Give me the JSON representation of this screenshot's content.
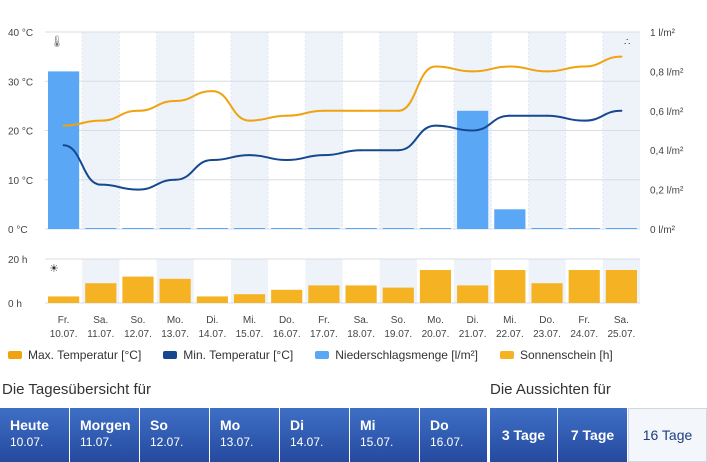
{
  "chart_data": [
    {
      "type": "line",
      "left_axis": {
        "unit": "°C",
        "ticks": [
          "40 °C",
          "30 °C",
          "20 °C",
          "10 °C",
          "0 °C"
        ],
        "ylim": [
          0,
          40
        ]
      },
      "right_axis": {
        "unit": "l/m²",
        "ticks": [
          "1 l/m²",
          "0,8 l/m²",
          "0,6 l/m²",
          "0,4 l/m²",
          "0,2 l/m²",
          "0 l/m²"
        ],
        "ylim": [
          0,
          1
        ]
      },
      "categories": [
        "Fr. 10.07.",
        "Sa. 11.07.",
        "So. 12.07.",
        "Mo. 13.07.",
        "Di. 14.07.",
        "Mi. 15.07.",
        "Do. 16.07.",
        "Fr. 17.07.",
        "Sa. 18.07.",
        "So. 19.07.",
        "Mo. 20.07.",
        "Di. 21.07.",
        "Mi. 22.07.",
        "Do. 23.07.",
        "Fr. 24.07.",
        "Sa. 25.07."
      ],
      "day_labels": [
        [
          "Fr.",
          "10.07."
        ],
        [
          "Sa.",
          "11.07."
        ],
        [
          "So.",
          "12.07."
        ],
        [
          "Mo.",
          "13.07."
        ],
        [
          "Di.",
          "14.07."
        ],
        [
          "Mi.",
          "15.07."
        ],
        [
          "Do.",
          "16.07."
        ],
        [
          "Fr.",
          "17.07."
        ],
        [
          "Sa.",
          "18.07."
        ],
        [
          "So.",
          "19.07."
        ],
        [
          "Mo.",
          "20.07."
        ],
        [
          "Di.",
          "21.07."
        ],
        [
          "Mi.",
          "22.07."
        ],
        [
          "Do.",
          "23.07."
        ],
        [
          "Fr.",
          "24.07."
        ],
        [
          "Sa.",
          "25.07."
        ]
      ],
      "series": [
        {
          "name": "Max. Temperatur [°C]",
          "kind": "line",
          "axis": "left",
          "color": "#f0a20f",
          "values": [
            21,
            22,
            24,
            26,
            28,
            22,
            23,
            24,
            24,
            24,
            33,
            32,
            33,
            32,
            33,
            35
          ]
        },
        {
          "name": "Min. Temperatur [°C]",
          "kind": "line",
          "axis": "left",
          "color": "#16488f",
          "values": [
            17,
            9,
            8,
            10,
            14,
            15,
            14,
            15,
            16,
            16,
            21,
            20,
            23,
            23,
            22,
            24
          ]
        },
        {
          "name": "Niederschlagsmenge [l/m²]",
          "kind": "bar",
          "axis": "right",
          "color": "#5aa7f6",
          "values": [
            0.8,
            0,
            0,
            0,
            0,
            0,
            0,
            0,
            0,
            0,
            0,
            0.6,
            0.1,
            0,
            0,
            0
          ]
        }
      ],
      "thermometer_icon": "thermometer-icon",
      "rain_icon": "raindrops-icon"
    },
    {
      "type": "bar",
      "axis": {
        "unit": "h",
        "ticks": [
          "20 h",
          "0 h"
        ],
        "ylim": [
          0,
          20
        ]
      },
      "series": [
        {
          "name": "Sonnenschein [h]",
          "color": "#f5b324",
          "values": [
            3,
            9,
            12,
            11,
            3,
            4,
            6,
            8,
            8,
            7,
            15,
            8,
            15,
            9,
            15,
            15
          ]
        }
      ],
      "sun_icon": "sun-icon"
    }
  ],
  "legend": [
    {
      "label": "Max. Temperatur [°C]",
      "color": "#f0a20f"
    },
    {
      "label": "Min. Temperatur [°C]",
      "color": "#16488f"
    },
    {
      "label": "Niederschlagsmenge [l/m²]",
      "color": "#5aa7f6"
    },
    {
      "label": "Sonnenschein [h]",
      "color": "#f5b324"
    }
  ],
  "captions": {
    "overview": "Die Tagesübersicht für",
    "outlook": "Die Aussichten für"
  },
  "tabs": [
    {
      "title": "Heute",
      "date": "10.07."
    },
    {
      "title": "Morgen",
      "date": "11.07."
    },
    {
      "title": "So",
      "date": "12.07."
    },
    {
      "title": "Mo",
      "date": "13.07."
    },
    {
      "title": "Di",
      "date": "14.07."
    },
    {
      "title": "Mi",
      "date": "15.07."
    },
    {
      "title": "Do",
      "date": "16.07."
    }
  ],
  "range_tabs": [
    {
      "label": "3 Tage",
      "active": false
    },
    {
      "label": "7 Tage",
      "active": false
    },
    {
      "label": "16 Tage",
      "active": true
    }
  ]
}
